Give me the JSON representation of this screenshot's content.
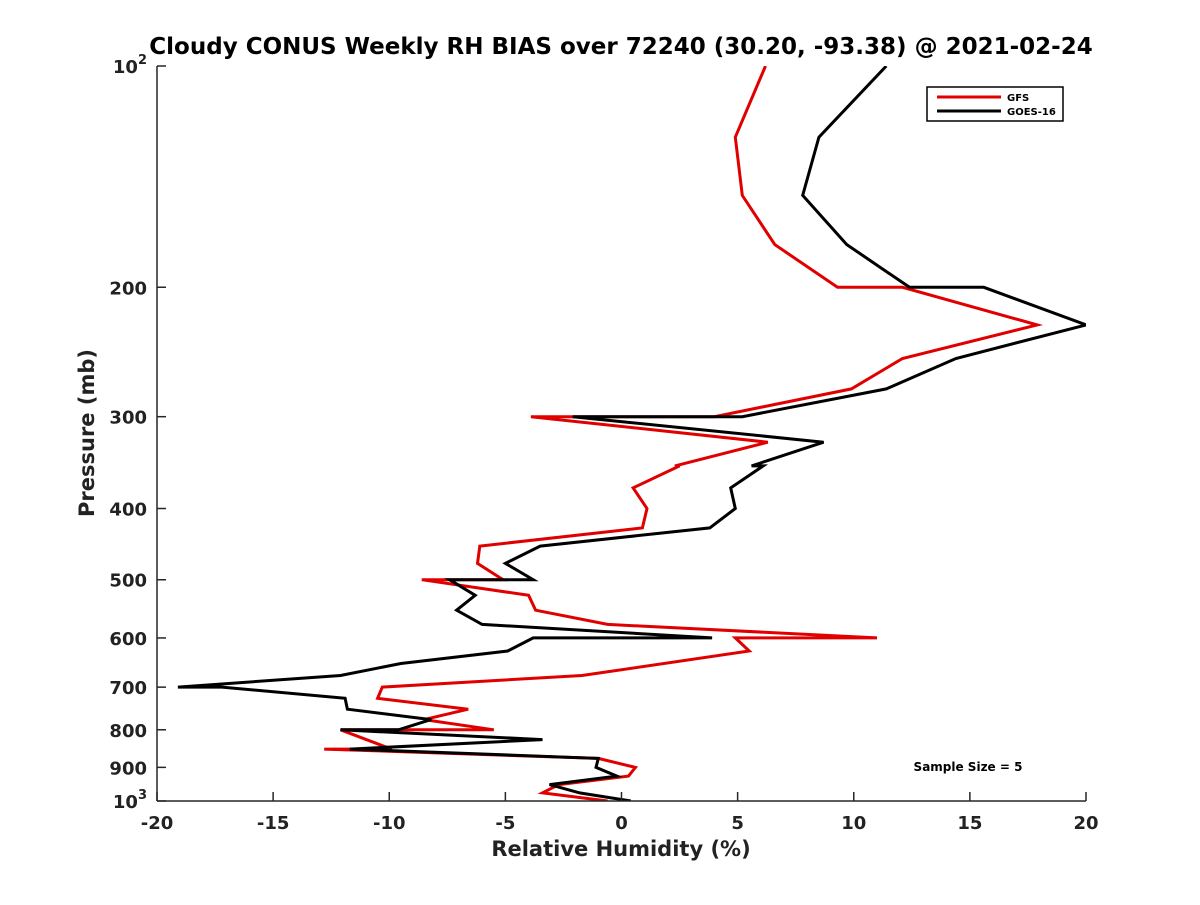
{
  "chart_data": {
    "type": "line",
    "title": "Cloudy CONUS Weekly RH BIAS over 72240 (30.20, -93.38) @ 2021-02-24",
    "xlabel": "Relative Humidity (%)",
    "ylabel": "Pressure (mb)",
    "xlim": [
      -20,
      20
    ],
    "ylim": [
      100,
      1000
    ],
    "yscale": "log",
    "yaxis_direction": "inverted",
    "x_ticks": [
      -20,
      -15,
      -10,
      -5,
      0,
      5,
      10,
      15,
      20
    ],
    "x_tick_labels": [
      "-20",
      "-15",
      "-10",
      "-5",
      "0",
      "5",
      "10",
      "15",
      "20"
    ],
    "y_ticks": [
      {
        "value": 100,
        "base": "10",
        "exponent": "2"
      },
      {
        "value": 200,
        "label": "200"
      },
      {
        "value": 300,
        "label": "300"
      },
      {
        "value": 400,
        "label": "400"
      },
      {
        "value": 500,
        "label": "500"
      },
      {
        "value": 600,
        "label": "600"
      },
      {
        "value": 700,
        "label": "700"
      },
      {
        "value": 800,
        "label": "800"
      },
      {
        "value": 900,
        "label": "900"
      },
      {
        "value": 1000,
        "base": "10",
        "exponent": "3"
      }
    ],
    "grid": false,
    "legend_position": "top-right",
    "annotation": "Sample Size = 5",
    "series": [
      {
        "name": "GFS",
        "color": "#e00000",
        "points": [
          {
            "x": 6.2,
            "p": 100
          },
          {
            "x": 4.9,
            "p": 125
          },
          {
            "x": 5.2,
            "p": 150
          },
          {
            "x": 6.6,
            "p": 175
          },
          {
            "x": 9.3,
            "p": 200
          },
          {
            "x": 12.1,
            "p": 200
          },
          {
            "x": 17.9,
            "p": 225
          },
          {
            "x": 12.1,
            "p": 250
          },
          {
            "x": 9.9,
            "p": 275
          },
          {
            "x": 4.0,
            "p": 300
          },
          {
            "x": -3.9,
            "p": 300
          },
          {
            "x": 6.3,
            "p": 325
          },
          {
            "x": 2.3,
            "p": 350
          },
          {
            "x": 2.5,
            "p": 350
          },
          {
            "x": 0.5,
            "p": 375
          },
          {
            "x": 1.1,
            "p": 400
          },
          {
            "x": 0.9,
            "p": 425
          },
          {
            "x": -6.1,
            "p": 450
          },
          {
            "x": -6.2,
            "p": 475
          },
          {
            "x": -5.1,
            "p": 500
          },
          {
            "x": -8.6,
            "p": 500
          },
          {
            "x": -4.0,
            "p": 525
          },
          {
            "x": -3.7,
            "p": 550
          },
          {
            "x": -0.6,
            "p": 575
          },
          {
            "x": 11.0,
            "p": 600
          },
          {
            "x": 4.9,
            "p": 600
          },
          {
            "x": 5.5,
            "p": 625
          },
          {
            "x": -1.7,
            "p": 675
          },
          {
            "x": -10.3,
            "p": 700
          },
          {
            "x": -10.5,
            "p": 725
          },
          {
            "x": -6.6,
            "p": 750
          },
          {
            "x": -8.5,
            "p": 775
          },
          {
            "x": -5.5,
            "p": 800
          },
          {
            "x": -7.8,
            "p": 800
          },
          {
            "x": -12.1,
            "p": 800
          },
          {
            "x": -9.9,
            "p": 850
          },
          {
            "x": -12.8,
            "p": 850
          },
          {
            "x": -1.0,
            "p": 875
          },
          {
            "x": 0.6,
            "p": 900
          },
          {
            "x": 0.3,
            "p": 925
          },
          {
            "x": -2.7,
            "p": 950
          },
          {
            "x": -3.4,
            "p": 975
          },
          {
            "x": -0.6,
            "p": 1000
          }
        ]
      },
      {
        "name": "GOES-16",
        "color": "#000000",
        "points": [
          {
            "x": 11.4,
            "p": 100
          },
          {
            "x": 8.5,
            "p": 125
          },
          {
            "x": 7.8,
            "p": 150
          },
          {
            "x": 9.7,
            "p": 175
          },
          {
            "x": 12.4,
            "p": 200
          },
          {
            "x": 15.6,
            "p": 200
          },
          {
            "x": 20.0,
            "p": 225
          },
          {
            "x": 14.4,
            "p": 250
          },
          {
            "x": 11.4,
            "p": 275
          },
          {
            "x": 5.2,
            "p": 300
          },
          {
            "x": -2.1,
            "p": 300
          },
          {
            "x": 8.7,
            "p": 325
          },
          {
            "x": 5.6,
            "p": 350
          },
          {
            "x": 6.1,
            "p": 350
          },
          {
            "x": 4.7,
            "p": 375
          },
          {
            "x": 4.9,
            "p": 400
          },
          {
            "x": 3.8,
            "p": 425
          },
          {
            "x": -3.5,
            "p": 450
          },
          {
            "x": -5.0,
            "p": 475
          },
          {
            "x": -3.8,
            "p": 500
          },
          {
            "x": -7.4,
            "p": 500
          },
          {
            "x": -6.3,
            "p": 525
          },
          {
            "x": -7.1,
            "p": 550
          },
          {
            "x": -6.0,
            "p": 575
          },
          {
            "x": 3.9,
            "p": 600
          },
          {
            "x": -3.8,
            "p": 600
          },
          {
            "x": -4.9,
            "p": 625
          },
          {
            "x": -9.5,
            "p": 650
          },
          {
            "x": -12.1,
            "p": 675
          },
          {
            "x": -19.1,
            "p": 700
          },
          {
            "x": -17.2,
            "p": 700
          },
          {
            "x": -11.9,
            "p": 725
          },
          {
            "x": -11.8,
            "p": 750
          },
          {
            "x": -8.2,
            "p": 775
          },
          {
            "x": -9.6,
            "p": 800
          },
          {
            "x": -12.1,
            "p": 800
          },
          {
            "x": -3.4,
            "p": 825
          },
          {
            "x": -11.7,
            "p": 850
          },
          {
            "x": -1.0,
            "p": 875
          },
          {
            "x": -1.1,
            "p": 900
          },
          {
            "x": -0.2,
            "p": 925
          },
          {
            "x": -3.1,
            "p": 950
          },
          {
            "x": -1.8,
            "p": 975
          },
          {
            "x": 0.4,
            "p": 1000
          }
        ]
      }
    ]
  }
}
